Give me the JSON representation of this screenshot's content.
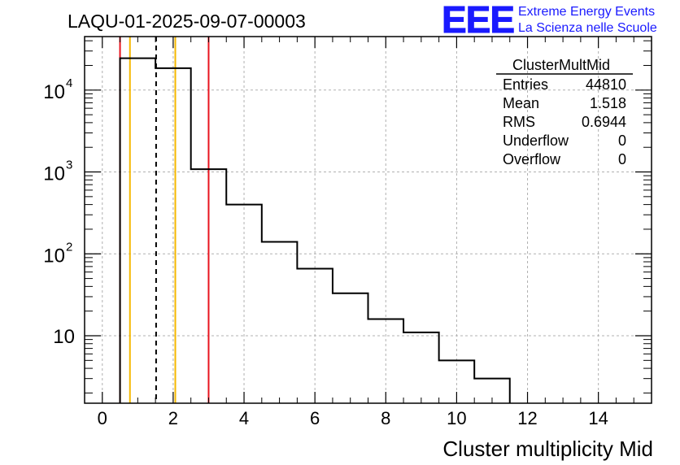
{
  "chart_data": {
    "type": "histogram",
    "title": "LAQU-01-2025-09-07-00003",
    "xlabel": "Cluster multiplicity Mid",
    "ylabel": "",
    "xlim": [
      -0.5,
      15.5
    ],
    "ylim_log": [
      1.5,
      45000
    ],
    "log_y": true,
    "grid": true,
    "x_ticks": [
      "0",
      "2",
      "4",
      "6",
      "8",
      "10",
      "12",
      "14"
    ],
    "x_tick_values": [
      0,
      2,
      4,
      6,
      8,
      10,
      12,
      14
    ],
    "y_ticks": [
      {
        "value": 10,
        "base": "10",
        "exp": ""
      },
      {
        "value": 100,
        "base": "10",
        "exp": "2"
      },
      {
        "value": 1000,
        "base": "10",
        "exp": "3"
      },
      {
        "value": 10000,
        "base": "10",
        "exp": "4"
      }
    ],
    "bins": [
      {
        "low": 0.5,
        "high": 1.5,
        "count": 24500
      },
      {
        "low": 1.5,
        "high": 2.5,
        "count": 18500
      },
      {
        "low": 2.5,
        "high": 3.5,
        "count": 1080
      },
      {
        "low": 3.5,
        "high": 4.5,
        "count": 400
      },
      {
        "low": 4.5,
        "high": 5.5,
        "count": 140
      },
      {
        "low": 5.5,
        "high": 6.5,
        "count": 66
      },
      {
        "low": 6.5,
        "high": 7.5,
        "count": 33
      },
      {
        "low": 7.5,
        "high": 8.5,
        "count": 16
      },
      {
        "low": 8.5,
        "high": 9.5,
        "count": 11
      },
      {
        "low": 9.5,
        "high": 10.5,
        "count": 5
      },
      {
        "low": 10.5,
        "high": 11.5,
        "count": 3
      },
      {
        "low": 11.5,
        "high": 12.5,
        "count": 0
      }
    ],
    "vertical_lines": [
      {
        "x": 0.5,
        "color": "#e8141e",
        "style": "solid",
        "label": "red-low"
      },
      {
        "x": 0.78,
        "color": "#f5b800",
        "style": "solid",
        "label": "orange-low"
      },
      {
        "x": 1.518,
        "color": "#000000",
        "style": "dashed",
        "label": "mean"
      },
      {
        "x": 2.06,
        "color": "#f5b800",
        "style": "solid",
        "label": "orange-high"
      },
      {
        "x": 3.0,
        "color": "#e8141e",
        "style": "solid",
        "label": "red-high"
      }
    ],
    "stats": {
      "title": "ClusterMultMid",
      "rows": [
        {
          "label": "Entries",
          "value": "44810"
        },
        {
          "label": "Mean",
          "value": "1.518"
        },
        {
          "label": "RMS",
          "value": "0.6944"
        },
        {
          "label": "Underflow",
          "value": "0"
        },
        {
          "label": "Overflow",
          "value": "0"
        }
      ]
    }
  },
  "logo": {
    "text": "EEE",
    "line1": "Extreme Energy Events",
    "line2": "La Scienza nelle Scuole",
    "color": "#1a1aff"
  }
}
